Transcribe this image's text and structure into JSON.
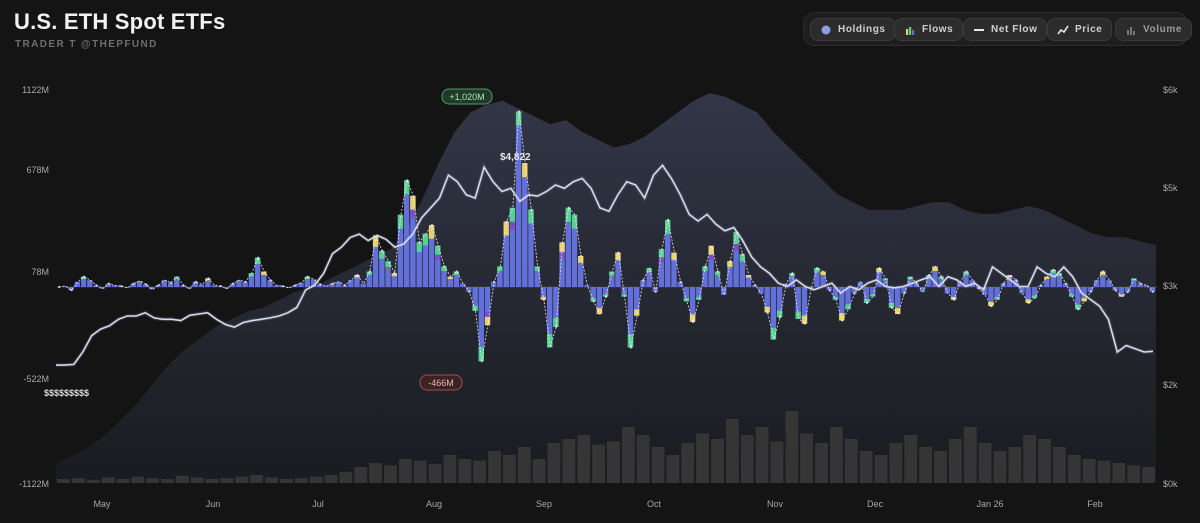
{
  "header": {
    "title": "U.S. ETH Spot ETFs",
    "subtitle": "TRADER T @THEPFUND"
  },
  "toolbar": {
    "holdings": "Holdings",
    "flows": "Flows",
    "net_flow": "Net Flow",
    "price": "Price",
    "volume": "Volume"
  },
  "colors": {
    "background": "#141414",
    "flow_main": "#6370d9",
    "flow_green": "#57d18f",
    "flow_yellow": "#e8d06a",
    "flow_purple": "#7c4dc4",
    "price_line": "#d7dae8",
    "net_flow_line": "#f2f2f2",
    "holdings_area": "#2c3040",
    "volume_bar": "#3a3a3a"
  },
  "chart_data": {
    "type": "bar",
    "left_axis": {
      "ticks": [
        "1122M",
        "678M",
        "78M",
        "-522M",
        "-1122M"
      ],
      "values": [
        1122,
        678,
        78,
        -522,
        -1122
      ],
      "unit": "M USD"
    },
    "right_axis": {
      "ticks": [
        "$6k",
        "$5k",
        "$3k",
        "$2k",
        "$0k"
      ],
      "values": [
        6000,
        5000,
        3000,
        2000,
        0
      ]
    },
    "months": [
      "May",
      "Jun",
      "Jul",
      "Aug",
      "Sep",
      "Oct",
      "Nov",
      "Dec",
      "Jan 26",
      "Feb"
    ],
    "annotations": {
      "max_flow": "+1,020M",
      "min_flow": "-466M",
      "price_peak": "$4,822",
      "price_start": "$$$$$$$$$"
    },
    "daily_net_flows_musd": [
      0,
      5,
      -20,
      30,
      60,
      40,
      10,
      -10,
      20,
      10,
      5,
      -5,
      20,
      35,
      15,
      -15,
      10,
      40,
      25,
      60,
      10,
      -10,
      30,
      15,
      50,
      10,
      5,
      -10,
      20,
      40,
      30,
      80,
      170,
      90,
      40,
      10,
      5,
      -5,
      10,
      25,
      60,
      45,
      15,
      5,
      20,
      30,
      10,
      40,
      70,
      20,
      90,
      300,
      210,
      150,
      80,
      420,
      620,
      530,
      260,
      310,
      360,
      240,
      120,
      60,
      90,
      20,
      -30,
      -150,
      -466,
      -240,
      30,
      120,
      380,
      460,
      1020,
      720,
      450,
      120,
      -80,
      -380,
      -250,
      260,
      460,
      420,
      180,
      10,
      -90,
      -170,
      -60,
      90,
      200,
      -60,
      -380,
      -180,
      40,
      110,
      -30,
      220,
      390,
      200,
      30,
      -90,
      -220,
      -80,
      120,
      240,
      90,
      -50,
      150,
      320,
      190,
      70,
      10,
      -40,
      -160,
      -330,
      -190,
      20,
      80,
      -200,
      -230,
      -10,
      110,
      90,
      -20,
      -80,
      -210,
      -140,
      -40,
      30,
      -100,
      -60,
      110,
      50,
      -130,
      -170,
      -40,
      60,
      20,
      -30,
      70,
      120,
      60,
      -40,
      -80,
      30,
      90,
      40,
      -10,
      -50,
      -120,
      -80,
      20,
      70,
      40,
      -40,
      -100,
      -70,
      10,
      60,
      100,
      80,
      20,
      -60,
      -140,
      -90,
      -30,
      40,
      90,
      40,
      -20,
      -60,
      -30,
      50,
      20,
      10,
      -30
    ],
    "eth_price_usd": [
      1800,
      1800,
      1810,
      2000,
      2250,
      2350,
      2400,
      2500,
      2550,
      2550,
      2600,
      2520,
      2500,
      2500,
      2480,
      2560,
      2580,
      2600,
      2500,
      2420,
      2380,
      2450,
      2480,
      2500,
      2520,
      2550,
      2600,
      2680,
      2950,
      3020,
      3200,
      3500,
      3600,
      3750,
      3800,
      3700,
      3780,
      3720,
      3600,
      3650,
      3800,
      4050,
      4200,
      4350,
      4700,
      4600,
      4400,
      4350,
      4822,
      4600,
      4450,
      4500,
      4300,
      4400,
      4380,
      4450,
      4550,
      4500,
      4600,
      4650,
      4500,
      4200,
      4150,
      4400,
      4600,
      4550,
      4350,
      4700,
      4850,
      4650,
      4400,
      4100,
      4000,
      4100,
      3950,
      3850,
      3900,
      3700,
      3450,
      3300,
      3200,
      3050,
      3000,
      3100,
      3000,
      2950,
      3000,
      3050,
      2900,
      3000,
      2950,
      3050,
      3100,
      3000,
      2980,
      3000,
      3050,
      3100,
      3150,
      3000,
      3150,
      3100,
      3000,
      3050,
      2950,
      3300,
      3200,
      3100,
      3000,
      3000,
      3300,
      3200,
      3150,
      3300,
      3150,
      2900,
      2800,
      2700,
      2500,
      2000,
      2100,
      2050,
      2000,
      2010
    ],
    "holdings_index": [
      0.05,
      0.07,
      0.09,
      0.12,
      0.16,
      0.2,
      0.25,
      0.3,
      0.34,
      0.37,
      0.4,
      0.42,
      0.44,
      0.45,
      0.47,
      0.49,
      0.5,
      0.52,
      0.54,
      0.56,
      0.58,
      0.6,
      0.65,
      0.73,
      0.82,
      0.9,
      0.95,
      0.97,
      0.98,
      0.96,
      0.94,
      0.92,
      0.93,
      0.9,
      0.88,
      0.86,
      0.87,
      0.89,
      0.92,
      0.95,
      0.98,
      1.0,
      0.99,
      0.97,
      0.95,
      0.9,
      0.86,
      0.82,
      0.78,
      0.74,
      0.72,
      0.7,
      0.7,
      0.7,
      0.71,
      0.72,
      0.72,
      0.7,
      0.69,
      0.69,
      0.7,
      0.71,
      0.7,
      0.68,
      0.66,
      0.64,
      0.63,
      0.63,
      0.62,
      0.61
    ],
    "volume_index": [
      0.05,
      0.06,
      0.04,
      0.07,
      0.05,
      0.08,
      0.06,
      0.05,
      0.09,
      0.07,
      0.05,
      0.06,
      0.08,
      0.1,
      0.07,
      0.05,
      0.06,
      0.08,
      0.1,
      0.14,
      0.2,
      0.25,
      0.22,
      0.3,
      0.28,
      0.24,
      0.35,
      0.3,
      0.28,
      0.4,
      0.35,
      0.45,
      0.3,
      0.5,
      0.55,
      0.6,
      0.48,
      0.52,
      0.7,
      0.6,
      0.45,
      0.35,
      0.5,
      0.62,
      0.55,
      0.8,
      0.6,
      0.7,
      0.52,
      0.9,
      0.62,
      0.5,
      0.7,
      0.55,
      0.4,
      0.35,
      0.5,
      0.6,
      0.45,
      0.4,
      0.55,
      0.7,
      0.5,
      0.4,
      0.45,
      0.6,
      0.55,
      0.45,
      0.35,
      0.3,
      0.28,
      0.25,
      0.22,
      0.2
    ]
  }
}
